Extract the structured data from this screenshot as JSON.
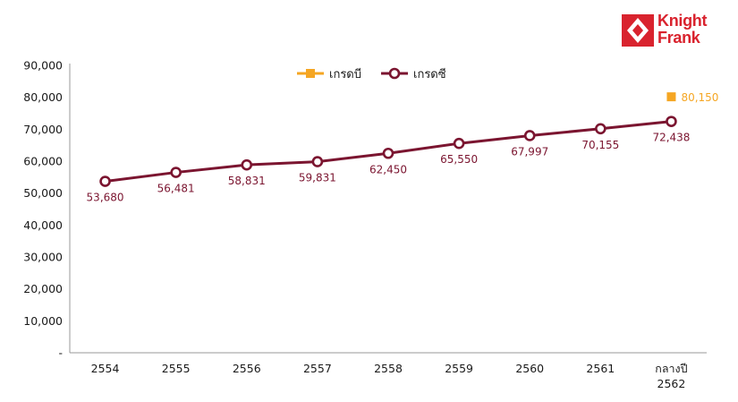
{
  "brand": {
    "line1": "Knight",
    "line2": "Frank",
    "color": "#d9232e"
  },
  "chart_data": {
    "type": "line",
    "categories": [
      "2554",
      "2555",
      "2556",
      "2557",
      "2558",
      "2559",
      "2560",
      "2561",
      "กลางปี 2562"
    ],
    "category_lines": [
      [
        "2554"
      ],
      [
        "2555"
      ],
      [
        "2556"
      ],
      [
        "2557"
      ],
      [
        "2558"
      ],
      [
        "2559"
      ],
      [
        "2560"
      ],
      [
        "2561"
      ],
      [
        "กลางปี",
        "2562"
      ]
    ],
    "series": [
      {
        "name": "เกรดบี",
        "color": "#f5a623",
        "marker": "square",
        "values": [
          null,
          null,
          null,
          null,
          null,
          null,
          null,
          null,
          80150
        ],
        "labels": [
          "",
          "",
          "",
          "",
          "",
          "",
          "",
          "",
          "80,150"
        ]
      },
      {
        "name": "เกรดซี",
        "color": "#7b1530",
        "marker": "open-circle",
        "values": [
          53680,
          56481,
          58831,
          59831,
          62450,
          65550,
          67997,
          70155,
          72438
        ],
        "labels": [
          "53,680",
          "56,481",
          "58,831",
          "59,831",
          "62,450",
          "65,550",
          "67,997",
          "70,155",
          "72,438"
        ]
      }
    ],
    "ylim": [
      0,
      90000
    ],
    "yticks": [
      0,
      10000,
      20000,
      30000,
      40000,
      50000,
      60000,
      70000,
      80000,
      90000
    ],
    "ytick_labels": [
      "-",
      "10,000",
      "20,000",
      "30,000",
      "40,000",
      "50,000",
      "60,000",
      "70,000",
      "80,000",
      "90,000"
    ],
    "legend_position": "top-center",
    "grid": false
  }
}
